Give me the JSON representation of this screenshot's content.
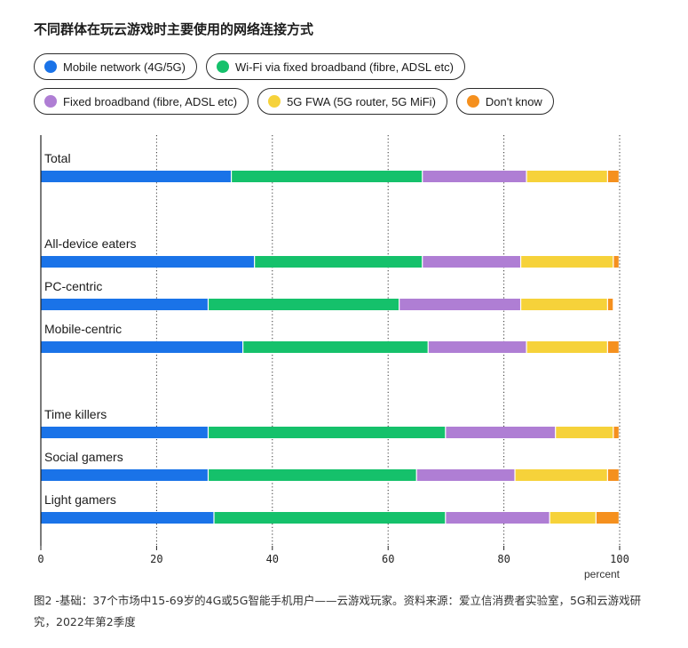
{
  "chart_data": {
    "type": "bar",
    "orientation": "horizontal",
    "stacked": true,
    "title": "不同群体在玩云游戏时主要使用的网络连接方式",
    "categories": [
      "Total",
      "All-device eaters",
      "PC-centric",
      "Mobile-centric",
      "Time killers",
      "Social gamers",
      "Light gamers"
    ],
    "series": [
      {
        "name": "Mobile network (4G/5G)",
        "color": "#1a73e8",
        "values": [
          33,
          37,
          29,
          35,
          29,
          29,
          30
        ]
      },
      {
        "name": "Wi-Fi via fixed broadband (fibre, ADSL etc)",
        "color": "#15c16b",
        "values": [
          33,
          29,
          33,
          32,
          41,
          36,
          40
        ]
      },
      {
        "name": "Fixed broadband (fibre, ADSL etc)",
        "color": "#af7ed4",
        "values": [
          18,
          17,
          21,
          17,
          19,
          17,
          18
        ]
      },
      {
        "name": "5G FWA (5G router, 5G MiFi)",
        "color": "#f6d23a",
        "values": [
          14,
          16,
          15,
          14,
          10,
          16,
          8
        ]
      },
      {
        "name": "Don't know",
        "color": "#f5901e",
        "values": [
          2,
          1,
          1,
          2,
          1,
          2,
          4
        ]
      }
    ],
    "xlim": [
      0,
      100
    ],
    "xticks": [
      "0",
      "20",
      "40",
      "60",
      "80",
      "100"
    ],
    "xlabel": "percent",
    "grid": "vertical dotted",
    "legend_placement": "top"
  },
  "footnote": "图2 -基础：37个市场中15-69岁的4G或5G智能手机用户——云游戏玩家。资料来源：爱立信消费者实验室，5G和云游戏研究，2022年第2季度"
}
